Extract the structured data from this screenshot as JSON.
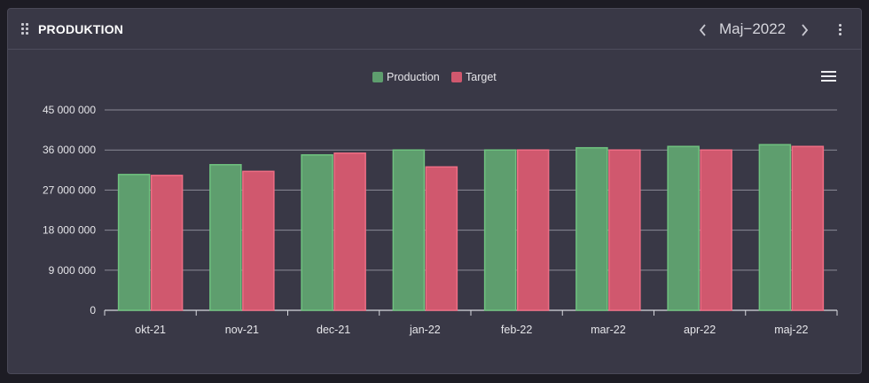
{
  "header": {
    "title": "PRODUKTION",
    "period": "Maj−2022",
    "icons": {
      "drag": "drag-handle-icon",
      "prev": "chevron-left-icon",
      "next": "chevron-right-icon",
      "menu": "more-vertical-icon",
      "chart_menu": "hamburger-menu-icon"
    }
  },
  "colors": {
    "production": "#5e9e6e",
    "production_edge": "#6fc27f",
    "target": "#d0586e",
    "target_edge": "#ef6d84",
    "card_bg": "#393846",
    "grid": "#8a8a96"
  },
  "chart_data": {
    "type": "bar",
    "categories": [
      "okt-21",
      "nov-21",
      "dec-21",
      "jan-22",
      "feb-22",
      "mar-22",
      "apr-22",
      "maj-22"
    ],
    "series": [
      {
        "name": "Production",
        "values": [
          30500000,
          32700000,
          34900000,
          36000000,
          36000000,
          36500000,
          36800000,
          37200000
        ]
      },
      {
        "name": "Target",
        "values": [
          30300000,
          31200000,
          35300000,
          32200000,
          36000000,
          36000000,
          36000000,
          36800000
        ]
      }
    ],
    "ylim": [
      0,
      45000000
    ],
    "yticks": [
      0,
      9000000,
      18000000,
      27000000,
      36000000,
      45000000
    ],
    "ytick_labels": [
      "0",
      "9 000 000",
      "18 000 000",
      "27 000 000",
      "36 000 000",
      "45 000 000"
    ],
    "legend": "top-center",
    "grid": true,
    "title": "",
    "xlabel": "",
    "ylabel": ""
  }
}
